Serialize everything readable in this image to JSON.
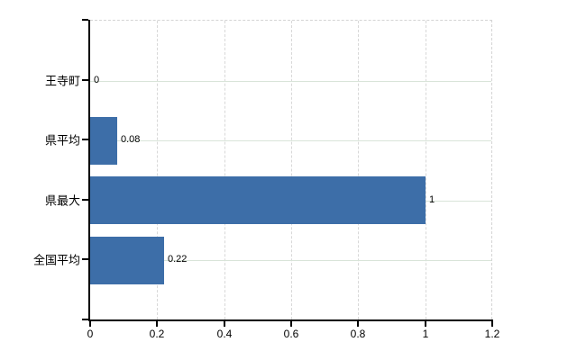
{
  "chart_data": {
    "type": "bar",
    "orientation": "horizontal",
    "title": "",
    "xlabel": "",
    "ylabel": "",
    "categories": [
      "王寺町",
      "県平均",
      "県最大",
      "全国平均"
    ],
    "values": [
      0,
      0.08,
      1,
      0.22
    ],
    "value_labels": [
      "0",
      "0.08",
      "1",
      "0.22"
    ],
    "xlim": [
      0,
      1.2
    ],
    "x_ticks": [
      0,
      0.2,
      0.4,
      0.6,
      0.8,
      1,
      1.2
    ],
    "x_tick_labels": [
      "0",
      "0.2",
      "0.4",
      "0.6",
      "0.8",
      "1",
      "1.2"
    ],
    "grid": true,
    "legend": false
  },
  "colors": {
    "bar": "#3d6ea8",
    "h_gridline": "#d9e4d9",
    "v_gridline": "#d8d8d8",
    "axis": "#000000",
    "text": "#000000",
    "background": "#ffffff"
  }
}
